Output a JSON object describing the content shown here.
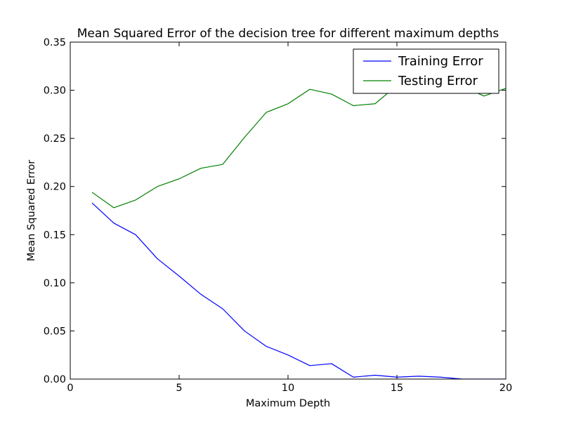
{
  "chart_data": {
    "type": "line",
    "title": "Mean Squared Error of the decision tree for different maximum depths",
    "xlabel": "Maximum Depth",
    "ylabel": "Mean Squared Error",
    "xlim": [
      0,
      20
    ],
    "ylim": [
      0,
      0.35
    ],
    "xticks": [
      0,
      5,
      10,
      15,
      20
    ],
    "yticks": [
      0.0,
      0.05,
      0.1,
      0.15,
      0.2,
      0.25,
      0.3,
      0.35
    ],
    "xtick_labels": [
      "0",
      "5",
      "10",
      "15",
      "20"
    ],
    "ytick_labels": [
      "0.00",
      "0.05",
      "0.10",
      "0.15",
      "0.20",
      "0.25",
      "0.30",
      "0.35"
    ],
    "grid": false,
    "legend_position": "upper-right",
    "x": [
      1,
      2,
      3,
      4,
      5,
      6,
      7,
      8,
      9,
      10,
      11,
      12,
      13,
      14,
      15,
      16,
      17,
      18,
      19,
      20
    ],
    "series": [
      {
        "name": "Training Error",
        "color": "#0000ff",
        "values": [
          0.183,
          0.162,
          0.15,
          0.125,
          0.107,
          0.088,
          0.073,
          0.05,
          0.034,
          0.025,
          0.014,
          0.016,
          0.002,
          0.004,
          0.002,
          0.003,
          0.002,
          0.0,
          0.0,
          0.0
        ]
      },
      {
        "name": "Testing Error",
        "color": "#008000",
        "values": [
          0.194,
          0.178,
          0.186,
          0.2,
          0.208,
          0.219,
          0.223,
          0.251,
          0.277,
          0.286,
          0.301,
          0.296,
          0.284,
          0.286,
          0.305,
          0.306,
          0.305,
          0.304,
          0.294,
          0.302
        ]
      }
    ]
  }
}
